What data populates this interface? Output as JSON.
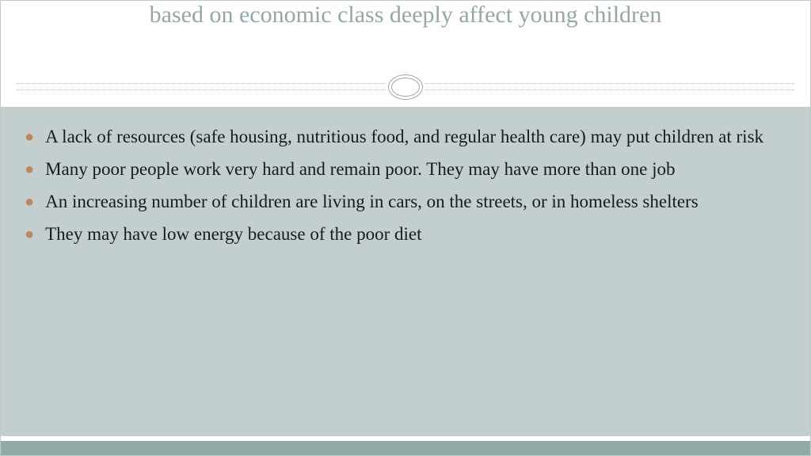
{
  "slide": {
    "title": "based on economic class deeply affect young children",
    "bullets": [
      "A lack of resources (safe housing, nutritious food, and regular health care) may put children at risk",
      "Many poor people work very hard and remain poor.  They may have more than one job",
      "An increasing number of children are living in cars, on the streets, or in homeless shelters",
      "They may have low energy because of the poor diet"
    ],
    "styling": {
      "title_color": "#92a7a7",
      "title_fontsize": 30,
      "body_fontsize": 23,
      "body_color": "#1a1a1a",
      "bullet_marker_color": "#c0885a",
      "content_background": "#c3cfcf",
      "footer_bar_color": "#8fa9a6",
      "divider_oval_border": "#9aa8a8",
      "divider_line_color": "#b0b8b8",
      "slide_border_color": "#c0c8c8",
      "font_family": "Georgia, serif"
    }
  }
}
